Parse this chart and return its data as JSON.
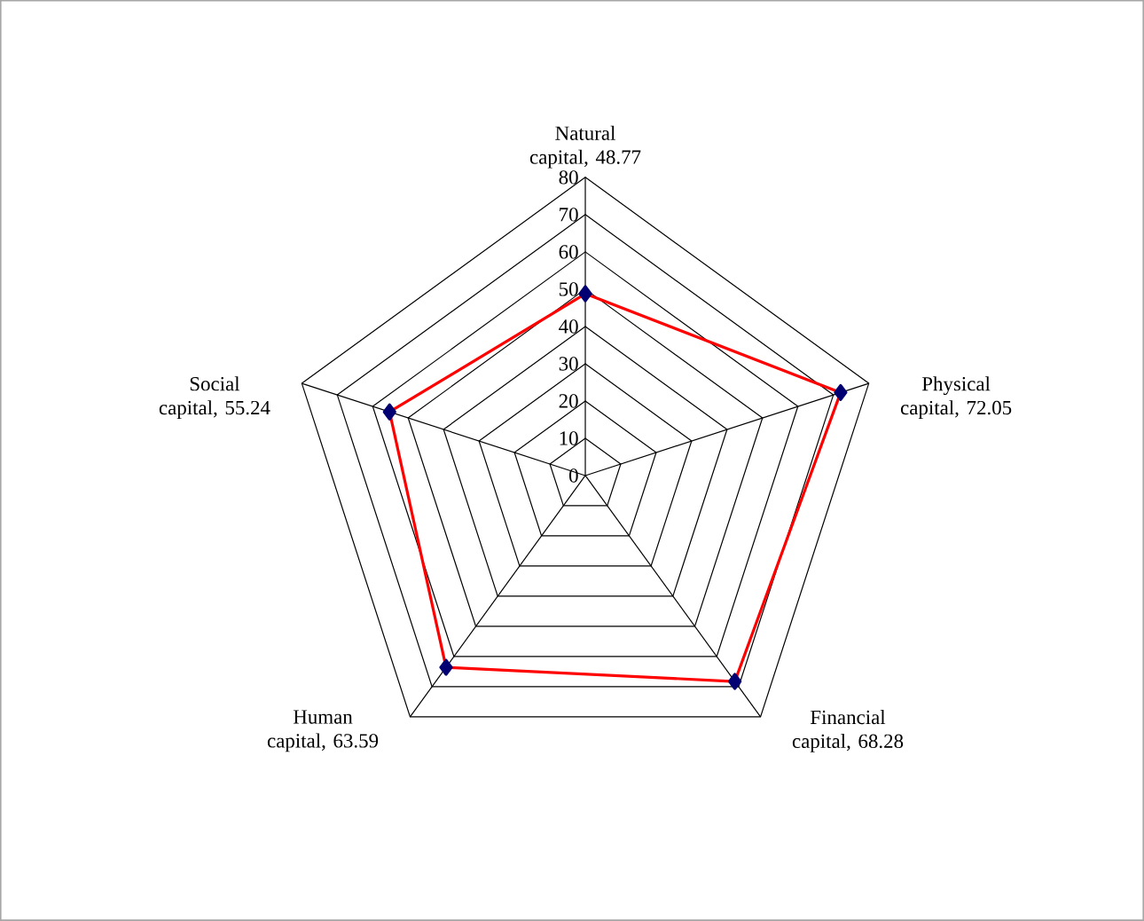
{
  "chart_data": {
    "type": "radar",
    "categories": [
      "Natural capital, 48.77",
      "Physical capital, 72.05",
      "Financial capital, 68.28",
      "Human capital, 63.59",
      "Social capital, 55.24"
    ],
    "series": [
      {
        "color": "#ff0000",
        "values": [
          48.77,
          72.05,
          68.28,
          63.59,
          55.24
        ]
      }
    ],
    "ylim": [
      0,
      80
    ],
    "yticks": [
      0,
      10,
      20,
      30,
      40,
      50,
      60,
      70,
      80
    ],
    "grid": true,
    "marker": "diamond",
    "line_style": "solid"
  }
}
